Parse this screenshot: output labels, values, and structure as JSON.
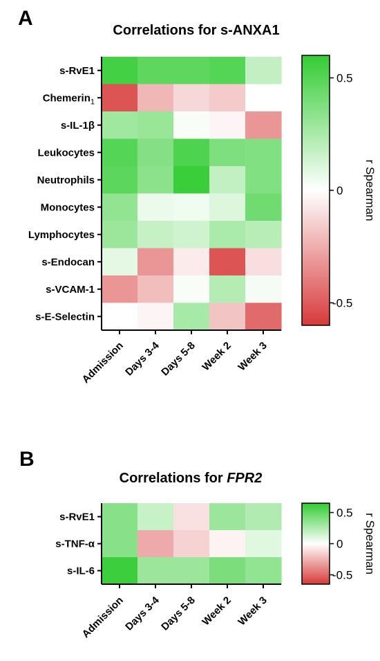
{
  "colors": {
    "negative": "#d73a3a",
    "zero": "#ffffff",
    "positive": "#33cc33",
    "axis": "#000000"
  },
  "chart_data": [
    {
      "panel": "A",
      "type": "heatmap",
      "title_parts": [
        {
          "text": "Correlations for s-ANXA1",
          "italic": false
        }
      ],
      "rows": [
        {
          "name": "s-RvE1"
        },
        {
          "name": "Chemerin",
          "sub": "1"
        },
        {
          "name": "s-IL-1β"
        },
        {
          "name": "Leukocytes"
        },
        {
          "name": "Neutrophils"
        },
        {
          "name": "Monocytes"
        },
        {
          "name": "Lymphocytes"
        },
        {
          "name": "s-Endocan"
        },
        {
          "name": "s-VCAM-1"
        },
        {
          "name": "s-E-Selectin"
        }
      ],
      "columns": [
        "Admission",
        "Days 3-4",
        "Days 5-8",
        "Week 2",
        "Week 3"
      ],
      "values": [
        [
          0.55,
          0.47,
          0.47,
          0.5,
          0.18
        ],
        [
          -0.52,
          -0.22,
          -0.12,
          -0.16,
          0.0
        ],
        [
          0.28,
          0.3,
          0.02,
          -0.03,
          -0.32
        ],
        [
          0.5,
          0.36,
          0.52,
          0.38,
          0.37
        ],
        [
          0.48,
          0.34,
          0.58,
          0.18,
          0.37
        ],
        [
          0.32,
          0.06,
          0.04,
          0.1,
          0.42
        ],
        [
          0.29,
          0.17,
          0.14,
          0.25,
          0.21
        ],
        [
          0.08,
          -0.32,
          -0.06,
          -0.52,
          -0.1
        ],
        [
          -0.32,
          -0.2,
          0.02,
          0.22,
          0.03
        ],
        [
          0.0,
          -0.03,
          0.26,
          -0.18,
          -0.45
        ]
      ],
      "zlim": [
        -0.6,
        0.6
      ],
      "colorbar_ticks": [
        {
          "value": 0.5,
          "label": "0.5"
        },
        {
          "value": 0,
          "label": "0"
        },
        {
          "value": -0.5,
          "label": "-0.5"
        }
      ],
      "colorbar_label": "r Spearman"
    },
    {
      "panel": "B",
      "type": "heatmap",
      "title_parts": [
        {
          "text": "Correlations for ",
          "italic": false
        },
        {
          "text": "FPR2",
          "italic": true
        }
      ],
      "rows": [
        {
          "name": "s-RvE1"
        },
        {
          "name": "s-TNF-α"
        },
        {
          "name": "s-IL-6"
        }
      ],
      "columns": [
        "Admission",
        "Days 3-4",
        "Days 5-8",
        "Week 2",
        "Week 3"
      ],
      "values": [
        [
          0.38,
          0.18,
          -0.1,
          0.32,
          0.25
        ],
        [
          0.38,
          -0.28,
          -0.15,
          -0.04,
          0.1
        ],
        [
          0.62,
          0.32,
          0.32,
          0.42,
          0.35
        ]
      ],
      "zlim": [
        -0.65,
        0.65
      ],
      "colorbar_ticks": [
        {
          "value": 0.5,
          "label": "0.5"
        },
        {
          "value": 0,
          "label": "0"
        },
        {
          "value": -0.5,
          "label": "-0.5"
        }
      ],
      "colorbar_label": "r Spearman"
    }
  ]
}
